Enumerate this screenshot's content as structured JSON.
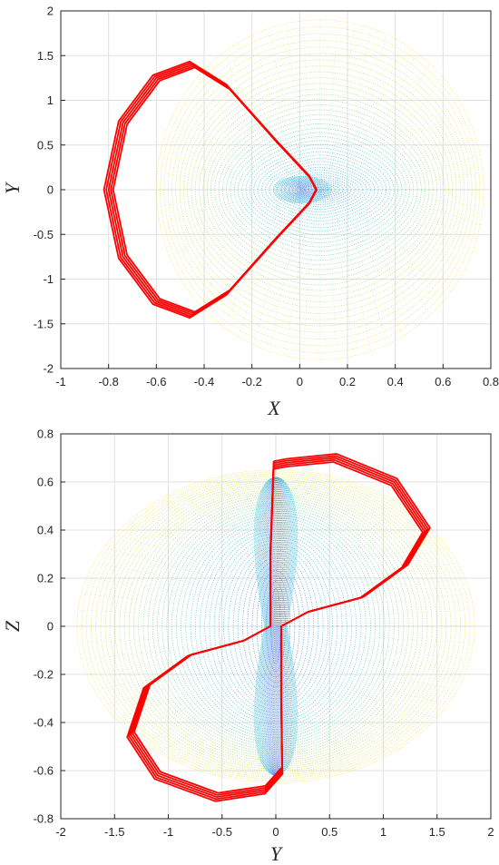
{
  "chart_data": [
    {
      "type": "line",
      "title": "",
      "xlabel": "X",
      "ylabel": "Y",
      "xlim": [
        -1,
        0.8
      ],
      "ylim": [
        -2,
        2
      ],
      "xticks": [
        "-1",
        "-0.8",
        "-0.6",
        "-0.4",
        "-0.2",
        "0",
        "0.2",
        "0.4",
        "0.6",
        "0.8"
      ],
      "yticks": [
        "2",
        "1.5",
        "1",
        "0.5",
        "0",
        "-0.5",
        "-1",
        "-1.5",
        "-2"
      ],
      "grid": true,
      "background": {
        "description": "dense family of colored loops",
        "x_extent": [
          -0.6,
          0.77
        ],
        "y_extent": [
          -1.9,
          1.9
        ],
        "colormap": [
          "#2a3cf0",
          "#1faee0",
          "#3cc8a0",
          "#a8d840",
          "#f0e030"
        ]
      },
      "series": [
        {
          "color": "#ff0000",
          "points": [
            [
              0.07,
              0.0
            ],
            [
              0.04,
              0.15
            ],
            [
              -0.1,
              0.55
            ],
            [
              -0.3,
              1.15
            ],
            [
              -0.45,
              1.4
            ],
            [
              -0.6,
              1.25
            ],
            [
              -0.74,
              0.75
            ],
            [
              -0.8,
              0.0
            ],
            [
              -0.74,
              -0.75
            ],
            [
              -0.6,
              -1.25
            ],
            [
              -0.45,
              -1.4
            ],
            [
              -0.3,
              -1.15
            ],
            [
              -0.1,
              -0.55
            ],
            [
              0.04,
              -0.15
            ],
            [
              0.07,
              0.0
            ]
          ]
        }
      ]
    },
    {
      "type": "line",
      "title": "",
      "xlabel": "Y",
      "ylabel": "Z",
      "xlim": [
        -2,
        2
      ],
      "ylim": [
        -0.8,
        0.8
      ],
      "xticks": [
        "-2",
        "-1.5",
        "-1",
        "-0.5",
        "0",
        "0.5",
        "1",
        "1.5",
        "2"
      ],
      "yticks": [
        "0.8",
        "0.6",
        "0.4",
        "0.2",
        "0",
        "-0.2",
        "-0.4",
        "-0.6",
        "-0.8"
      ],
      "grid": true,
      "background": {
        "description": "dense family of colored loops",
        "x_extent": [
          -1.85,
          1.85
        ],
        "y_extent": [
          -0.65,
          0.65
        ],
        "colormap": [
          "#2a3cf0",
          "#1faee0",
          "#3cc8a0",
          "#a8d840",
          "#f0e030"
        ]
      },
      "series": [
        {
          "color": "#ff0000",
          "points": [
            [
              -0.02,
              0.67
            ],
            [
              -0.05,
              0.3
            ],
            [
              -0.05,
              0.0
            ],
            [
              -0.3,
              -0.06
            ],
            [
              -0.8,
              -0.12
            ],
            [
              -1.2,
              -0.25
            ],
            [
              -1.35,
              -0.45
            ],
            [
              -1.1,
              -0.62
            ],
            [
              -0.55,
              -0.71
            ],
            [
              -0.1,
              -0.68
            ],
            [
              0.06,
              -0.6
            ],
            [
              0.05,
              -0.3
            ],
            [
              0.05,
              0.0
            ],
            [
              0.3,
              0.06
            ],
            [
              0.8,
              0.12
            ],
            [
              1.2,
              0.25
            ],
            [
              1.4,
              0.4
            ],
            [
              1.1,
              0.6
            ],
            [
              0.55,
              0.7
            ],
            [
              0.1,
              0.68
            ],
            [
              -0.02,
              0.67
            ]
          ]
        }
      ]
    }
  ]
}
